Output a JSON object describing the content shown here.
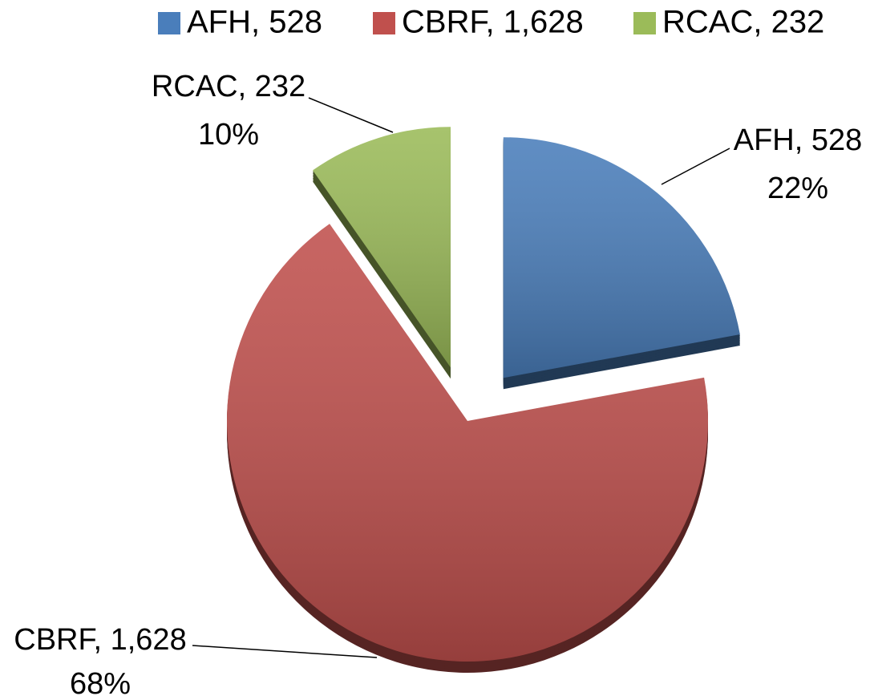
{
  "chart_data": {
    "type": "pie",
    "categories": [
      "AFH, 528",
      "CBRF, 1,628",
      "RCAC, 232"
    ],
    "values": [
      528,
      1628,
      232
    ],
    "percent_labels": [
      "22%",
      "68%",
      "10%"
    ],
    "colors": [
      "#4a7ebb",
      "#c0504d",
      "#9bbb59"
    ],
    "exploded": [
      true,
      false,
      true
    ],
    "legend": "top"
  }
}
